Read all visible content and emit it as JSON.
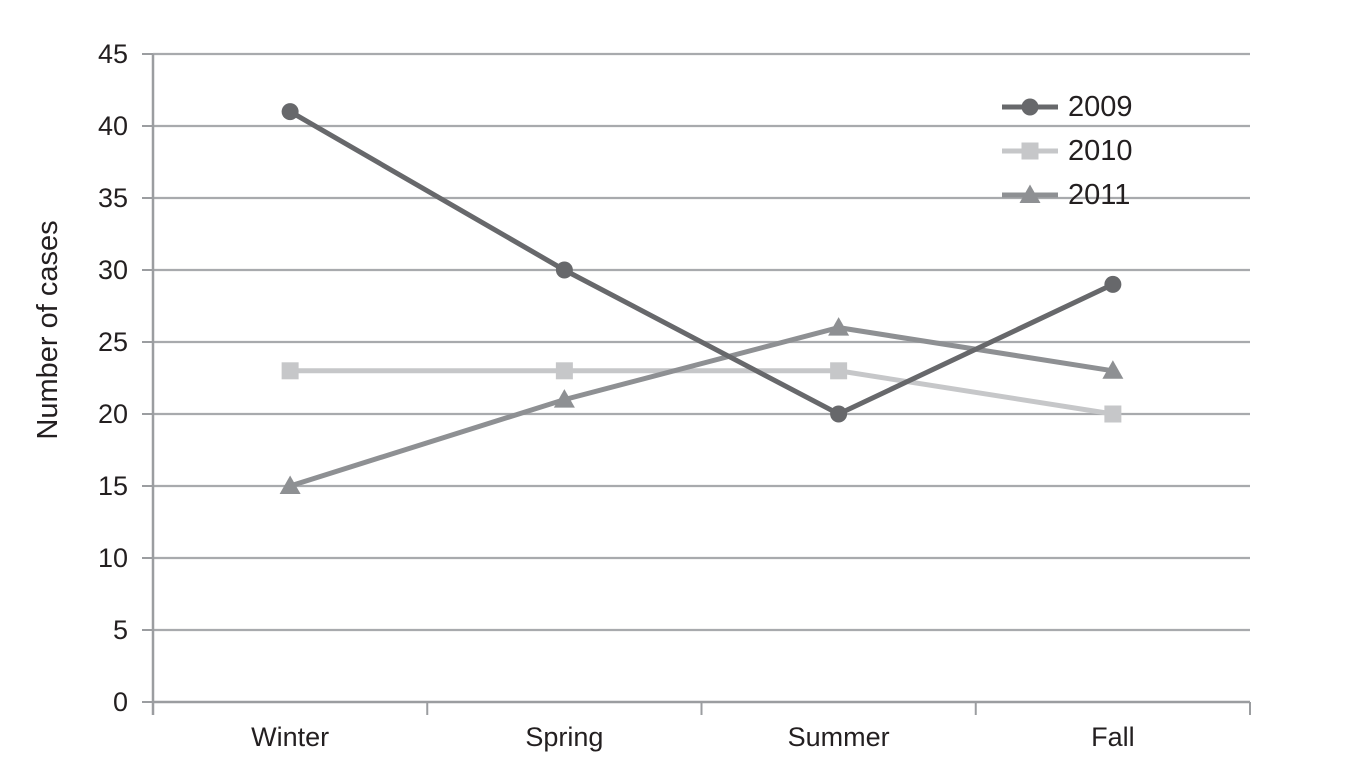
{
  "chart_data": {
    "type": "line",
    "title": "",
    "xlabel": "",
    "ylabel": "Number of cases",
    "categories": [
      "Winter",
      "Spring",
      "Summer",
      "Fall"
    ],
    "series": [
      {
        "name": "2009",
        "values": [
          41,
          30,
          20,
          29
        ],
        "color": "#67686b",
        "marker": "circle"
      },
      {
        "name": "2010",
        "values": [
          23,
          23,
          23,
          20
        ],
        "color": "#c6c7c9",
        "marker": "square"
      },
      {
        "name": "2011",
        "values": [
          15,
          21,
          26,
          23
        ],
        "color": "#8e9093",
        "marker": "triangle"
      }
    ],
    "ylim": [
      0,
      45
    ],
    "ytick_step": 5,
    "yticks": [
      0,
      5,
      10,
      15,
      20,
      25,
      30,
      35,
      40,
      45
    ],
    "grid": "horizontal",
    "legend_position": "top-right",
    "legend_labels": [
      "2009",
      "2010",
      "2011"
    ],
    "colors": {
      "gridline": "#a8aaad",
      "axis": "#9b9da0",
      "text": "#231f20",
      "background": "#ffffff"
    }
  }
}
